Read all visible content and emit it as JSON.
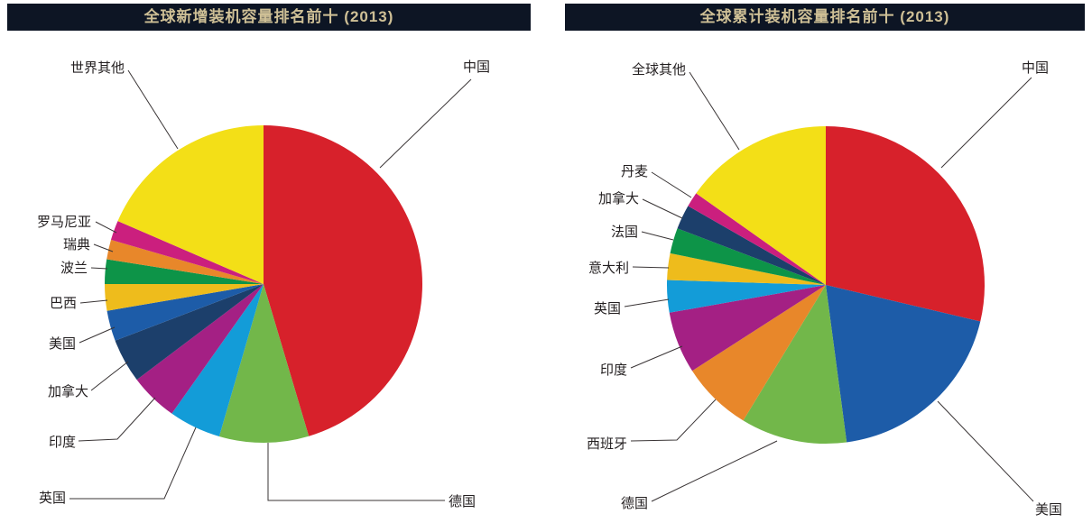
{
  "styles": {
    "header_bg": "#0d1524",
    "header_fg": "#cfc096",
    "label_color": "#231f20",
    "leader_line_color": "#3a3536",
    "background": "#ffffff"
  },
  "chart_data": [
    {
      "type": "pie",
      "title": "全球新增装机容量排名前十 (2013)",
      "values_are": "percent share, estimated from slice angles",
      "start_angle_deg": 0,
      "direction": "clockwise",
      "labeling": "leader-line callouts",
      "categories": [
        "中国",
        "德国",
        "英国",
        "印度",
        "加拿大",
        "美国",
        "巴西",
        "波兰",
        "瑞典",
        "罗马尼亚",
        "世界其他"
      ],
      "values": [
        45.4,
        9.1,
        5.3,
        4.9,
        4.5,
        3.1,
        2.7,
        2.5,
        2.0,
        2.0,
        18.5
      ],
      "colors": [
        "#d7212b",
        "#72b74a",
        "#139cd8",
        "#a42084",
        "#1c3f6b",
        "#1d5ca8",
        "#eebc1c",
        "#0d9448",
        "#e8872a",
        "#cb1f7e",
        "#f3df17"
      ]
    },
    {
      "type": "pie",
      "title": "全球累计装机容量排名前十 (2013)",
      "values_are": "percent share, estimated from slice angles",
      "start_angle_deg": 0,
      "direction": "clockwise",
      "labeling": "leader-line callouts",
      "categories": [
        "中国",
        "美国",
        "德国",
        "西班牙",
        "印度",
        "英国",
        "意大利",
        "法国",
        "加拿大",
        "丹麦",
        "全球其他"
      ],
      "values": [
        28.7,
        19.2,
        10.8,
        7.2,
        6.3,
        3.3,
        2.7,
        2.6,
        2.5,
        1.5,
        15.2
      ],
      "colors": [
        "#d7212b",
        "#1d5ca8",
        "#72b74a",
        "#e8872a",
        "#a42084",
        "#139cd8",
        "#eebc1c",
        "#0d9448",
        "#1c3f6b",
        "#cb1f7e",
        "#f3df17"
      ]
    }
  ]
}
